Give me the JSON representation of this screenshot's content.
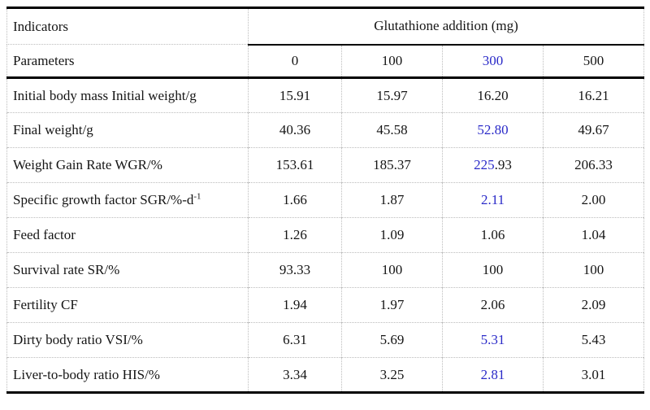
{
  "table": {
    "header": {
      "indicators": "Indicators",
      "parameters": "Parameters",
      "group_label": "Glutathione addition (mg)",
      "doses": [
        {
          "text": "0",
          "blue": false
        },
        {
          "text": "100",
          "blue": false
        },
        {
          "text": "300",
          "blue": true
        },
        {
          "text": "500",
          "blue": false
        }
      ]
    },
    "rows": [
      {
        "label": "Initial body mass Initial weight/g",
        "values": [
          {
            "parts": [
              {
                "t": "15.91",
                "blue": false
              }
            ]
          },
          {
            "parts": [
              {
                "t": "15.97",
                "blue": false
              }
            ]
          },
          {
            "parts": [
              {
                "t": "16.20",
                "blue": false
              }
            ]
          },
          {
            "parts": [
              {
                "t": "16.21",
                "blue": false
              }
            ]
          }
        ]
      },
      {
        "label": "Final weight/g",
        "values": [
          {
            "parts": [
              {
                "t": "40.36",
                "blue": false
              }
            ]
          },
          {
            "parts": [
              {
                "t": "45.58",
                "blue": false
              }
            ]
          },
          {
            "parts": [
              {
                "t": "52.80",
                "blue": true
              }
            ]
          },
          {
            "parts": [
              {
                "t": "49.67",
                "blue": false
              }
            ]
          }
        ]
      },
      {
        "label": "Weight Gain Rate WGR/%",
        "values": [
          {
            "parts": [
              {
                "t": "153.61",
                "blue": false
              }
            ]
          },
          {
            "parts": [
              {
                "t": "185.37",
                "blue": false
              }
            ]
          },
          {
            "parts": [
              {
                "t": "225",
                "blue": true
              },
              {
                "t": ".93",
                "blue": false
              }
            ]
          },
          {
            "parts": [
              {
                "t": "206.33",
                "blue": false
              }
            ]
          }
        ]
      },
      {
        "label": "Specific growth factor SGR/%-d",
        "label_sup": "-1",
        "values": [
          {
            "parts": [
              {
                "t": "1.66",
                "blue": false
              }
            ]
          },
          {
            "parts": [
              {
                "t": "1.87",
                "blue": false
              }
            ]
          },
          {
            "parts": [
              {
                "t": "2.11",
                "blue": true
              }
            ]
          },
          {
            "parts": [
              {
                "t": "2.00",
                "blue": false
              }
            ]
          }
        ]
      },
      {
        "label": "Feed factor",
        "values": [
          {
            "parts": [
              {
                "t": "1.26",
                "blue": false
              }
            ]
          },
          {
            "parts": [
              {
                "t": "1.09",
                "blue": false
              }
            ]
          },
          {
            "parts": [
              {
                "t": "1.06",
                "blue": false
              }
            ]
          },
          {
            "parts": [
              {
                "t": "1.04",
                "blue": false
              }
            ]
          }
        ]
      },
      {
        "label": "Survival rate SR/%",
        "values": [
          {
            "parts": [
              {
                "t": "93.33",
                "blue": false
              }
            ]
          },
          {
            "parts": [
              {
                "t": "100",
                "blue": false
              }
            ]
          },
          {
            "parts": [
              {
                "t": "100",
                "blue": false
              }
            ]
          },
          {
            "parts": [
              {
                "t": "100",
                "blue": false
              }
            ]
          }
        ]
      },
      {
        "label": "Fertility CF",
        "values": [
          {
            "parts": [
              {
                "t": "1.94",
                "blue": false
              }
            ]
          },
          {
            "parts": [
              {
                "t": "1.97",
                "blue": false
              }
            ]
          },
          {
            "parts": [
              {
                "t": "2.06",
                "blue": false
              }
            ]
          },
          {
            "parts": [
              {
                "t": "2.09",
                "blue": false
              }
            ]
          }
        ]
      },
      {
        "label": "Dirty body ratio VSI/%",
        "values": [
          {
            "parts": [
              {
                "t": "6.31",
                "blue": false
              }
            ]
          },
          {
            "parts": [
              {
                "t": "5.69",
                "blue": false
              }
            ]
          },
          {
            "parts": [
              {
                "t": "5.31",
                "blue": true
              }
            ]
          },
          {
            "parts": [
              {
                "t": "5.43",
                "blue": false
              }
            ]
          }
        ]
      },
      {
        "label": "Liver-to-body ratio HIS/%",
        "values": [
          {
            "parts": [
              {
                "t": "3.34",
                "blue": false
              }
            ]
          },
          {
            "parts": [
              {
                "t": "3.25",
                "blue": false
              }
            ]
          },
          {
            "parts": [
              {
                "t": "2.81",
                "blue": true
              }
            ]
          },
          {
            "parts": [
              {
                "t": "3.01",
                "blue": false
              }
            ]
          }
        ]
      }
    ],
    "colors": {
      "text": "#151515",
      "highlight_blue": "#2a2ac8",
      "rule_black": "#000000",
      "grid_dotted": "#bcbcbc"
    }
  }
}
